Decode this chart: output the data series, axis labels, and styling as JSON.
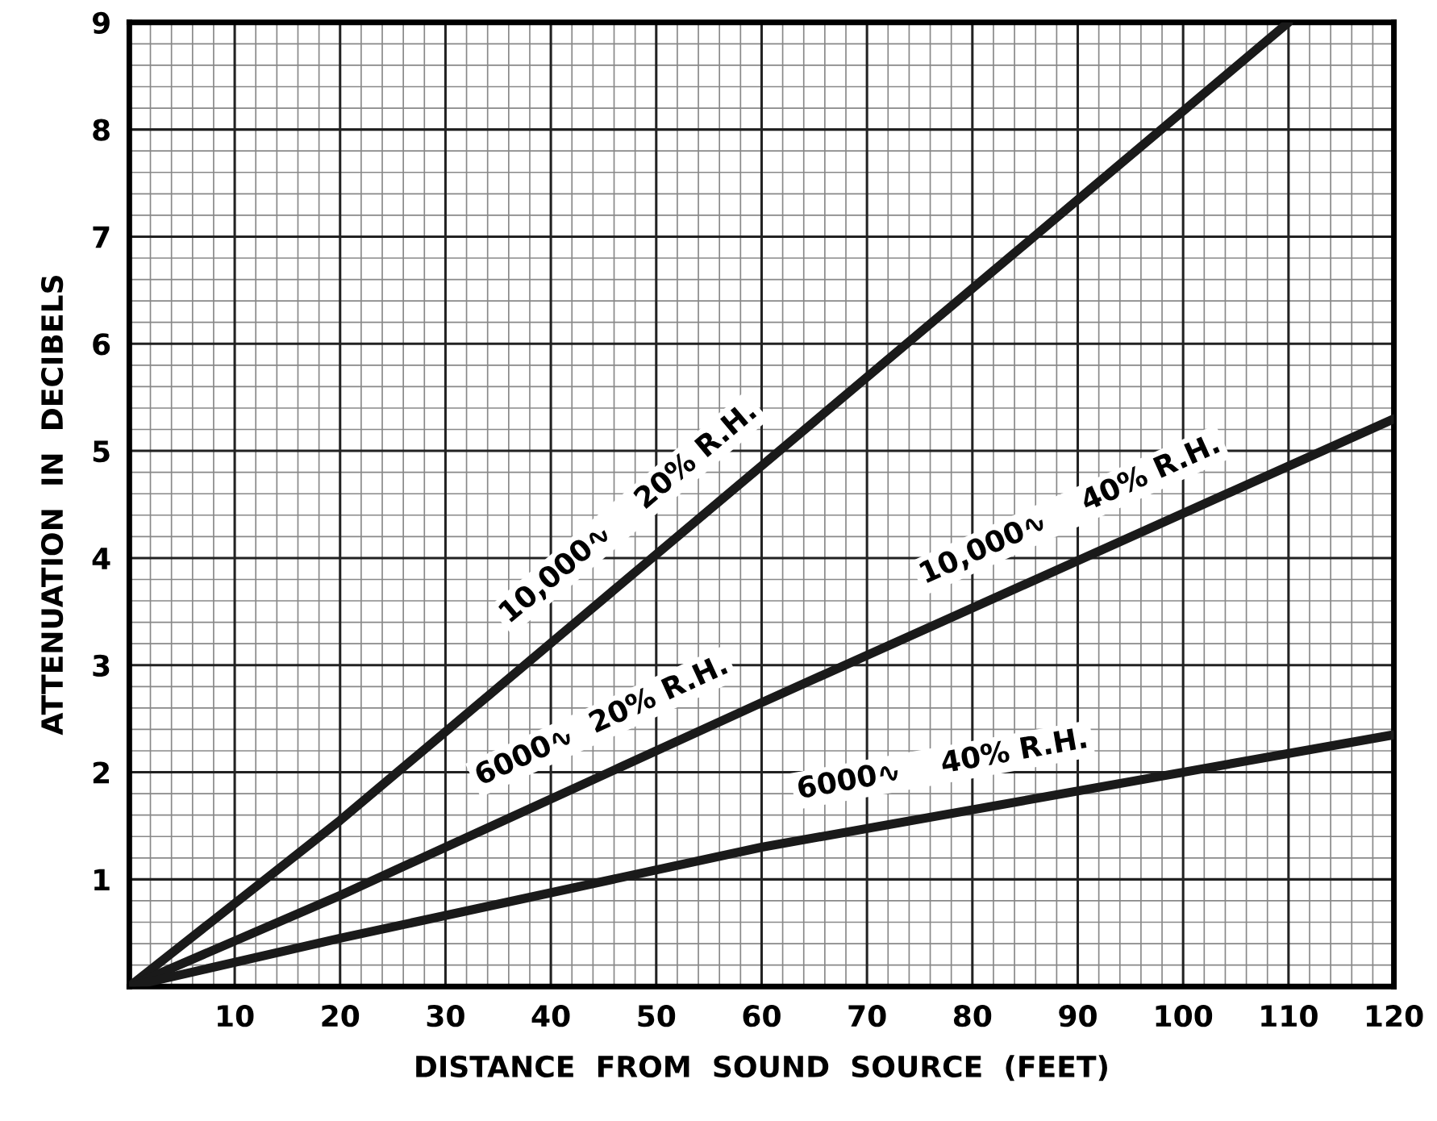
{
  "chart_data": {
    "type": "line",
    "xlabel": "DISTANCE  FROM  SOUND  SOURCE  (FEET)",
    "ylabel": "ATTENUATION  IN  DECIBELS",
    "series": [
      {
        "color": "#1a1a1a",
        "x": [
          0,
          20,
          110
        ],
        "values": [
          0,
          1.55,
          9
        ]
      },
      {
        "color": "#1a1a1a",
        "x": [
          0,
          20,
          60,
          120
        ],
        "values": [
          0,
          0.85,
          2.65,
          5.3
        ]
      },
      {
        "color": "#1a1a1a",
        "x": [
          0,
          20,
          60,
          120
        ],
        "values": [
          0,
          0.45,
          1.3,
          2.35
        ]
      }
    ],
    "annotations": [
      "10,000∿    20% R.H.",
      "6000∿  20% R.H.",
      "10,000∿    40% R.H.",
      "6000∿    40% R.H."
    ],
    "xlim": [
      0,
      120
    ],
    "ylim": [
      0,
      9
    ],
    "xticks": [
      {
        "value": 0,
        "label": null
      },
      10,
      20,
      30,
      40,
      50,
      60,
      70,
      80,
      90,
      100,
      110,
      120
    ],
    "yticks": [
      {
        "value": 0,
        "label": null
      },
      1,
      2,
      3,
      4,
      5,
      6,
      7,
      8,
      9
    ],
    "grid": true,
    "marker": "none",
    "line_style": "solid"
  }
}
